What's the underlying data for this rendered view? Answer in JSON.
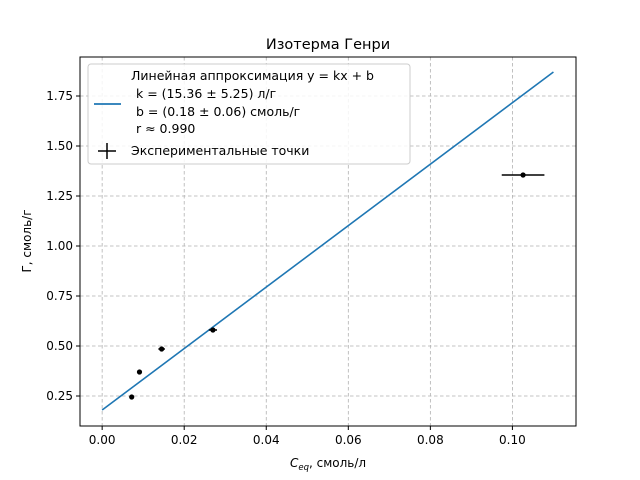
{
  "chart_data": {
    "type": "scatter",
    "title": "Изотерма Генри",
    "xlabel_main": "C",
    "xlabel_sub": "eq",
    "xlabel_rest": ", смоль/л",
    "ylabel": "Г, смоль/г",
    "xlim": [
      -0.0054,
      0.1155
    ],
    "ylim": [
      0.1,
      1.945
    ],
    "xticks": [
      0.0,
      0.02,
      0.04,
      0.06,
      0.08,
      0.1
    ],
    "xtick_labels": [
      "0.00",
      "0.02",
      "0.04",
      "0.06",
      "0.08",
      "0.10"
    ],
    "yticks": [
      0.25,
      0.5,
      0.75,
      1.0,
      1.25,
      1.5,
      1.75
    ],
    "ytick_labels": [
      "0.25",
      "0.50",
      "0.75",
      "1.00",
      "1.25",
      "1.50",
      "1.75"
    ],
    "grid": true,
    "legend_position": "top-left",
    "series": [
      {
        "kind": "line",
        "color": "#1f77b4",
        "x": [
          0.0,
          0.11
        ],
        "y": [
          0.18,
          1.87
        ],
        "legend_lines": [
          "Линейная аппроксимация y = kx + b",
          "k = (15.36 ± 5.25) л/г",
          "b = (0.18 ± 0.06) смоль/г",
          "r ≈ 0.990"
        ]
      },
      {
        "kind": "errorbar",
        "color": "#000000",
        "name": "Экспериментальные точки",
        "points": [
          {
            "x": 0.0072,
            "y": 0.245,
            "xerr": 0.0003
          },
          {
            "x": 0.0091,
            "y": 0.37,
            "xerr": 0.0003
          },
          {
            "x": 0.0145,
            "y": 0.485,
            "xerr": 0.0008
          },
          {
            "x": 0.027,
            "y": 0.58,
            "xerr": 0.001
          },
          {
            "x": 0.1026,
            "y": 1.355,
            "xerr": 0.0052
          }
        ]
      }
    ]
  }
}
